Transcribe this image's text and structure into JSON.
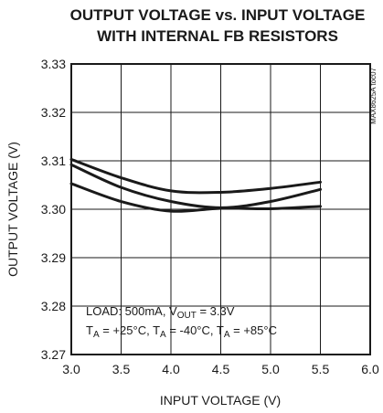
{
  "chart_data": {
    "type": "line",
    "title_lines": [
      "OUTPUT VOLTAGE vs. INPUT VOLTAGE",
      "WITH INTERNAL FB RESISTORS"
    ],
    "xlabel": "INPUT VOLTAGE (V)",
    "ylabel": "OUTPUT VOLTAGE (V)",
    "xlim": [
      3.0,
      6.0
    ],
    "ylim": [
      3.27,
      3.33
    ],
    "xticks": [
      "3.0",
      "3.5",
      "4.0",
      "4.5",
      "5.0",
      "5.5",
      "6.0"
    ],
    "yticks": [
      "3.33",
      "3.32",
      "3.31",
      "3.30",
      "3.29",
      "3.28",
      "3.27"
    ],
    "grid": true,
    "side_label": "MAX8625A toc07",
    "annotation": {
      "line1_prefix": "LOAD: 500mA, V",
      "line1_sub": "OUT",
      "line1_suffix": " = 3.3V",
      "line2_parts": [
        {
          "main": "T",
          "sub": "A",
          "rest": " = +25°C, "
        },
        {
          "main": "T",
          "sub": "A",
          "rest": " = -40°C, "
        },
        {
          "main": "T",
          "sub": "A",
          "rest": " = +85°C"
        }
      ]
    },
    "series": [
      {
        "x": [
          3.0,
          3.5,
          4.0,
          4.5,
          5.0,
          5.5
        ],
        "y": [
          3.3103,
          3.3065,
          3.3038,
          3.3035,
          3.3043,
          3.3056
        ]
      },
      {
        "x": [
          3.0,
          3.5,
          4.0,
          4.5,
          5.0,
          5.5
        ],
        "y": [
          3.3092,
          3.3045,
          3.3016,
          3.3003,
          3.3016,
          3.3041
        ]
      },
      {
        "x": [
          3.0,
          3.5,
          4.0,
          4.5,
          5.0,
          5.5
        ],
        "y": [
          3.3053,
          3.3016,
          3.2996,
          3.3002,
          3.3001,
          3.3006
        ]
      }
    ]
  }
}
